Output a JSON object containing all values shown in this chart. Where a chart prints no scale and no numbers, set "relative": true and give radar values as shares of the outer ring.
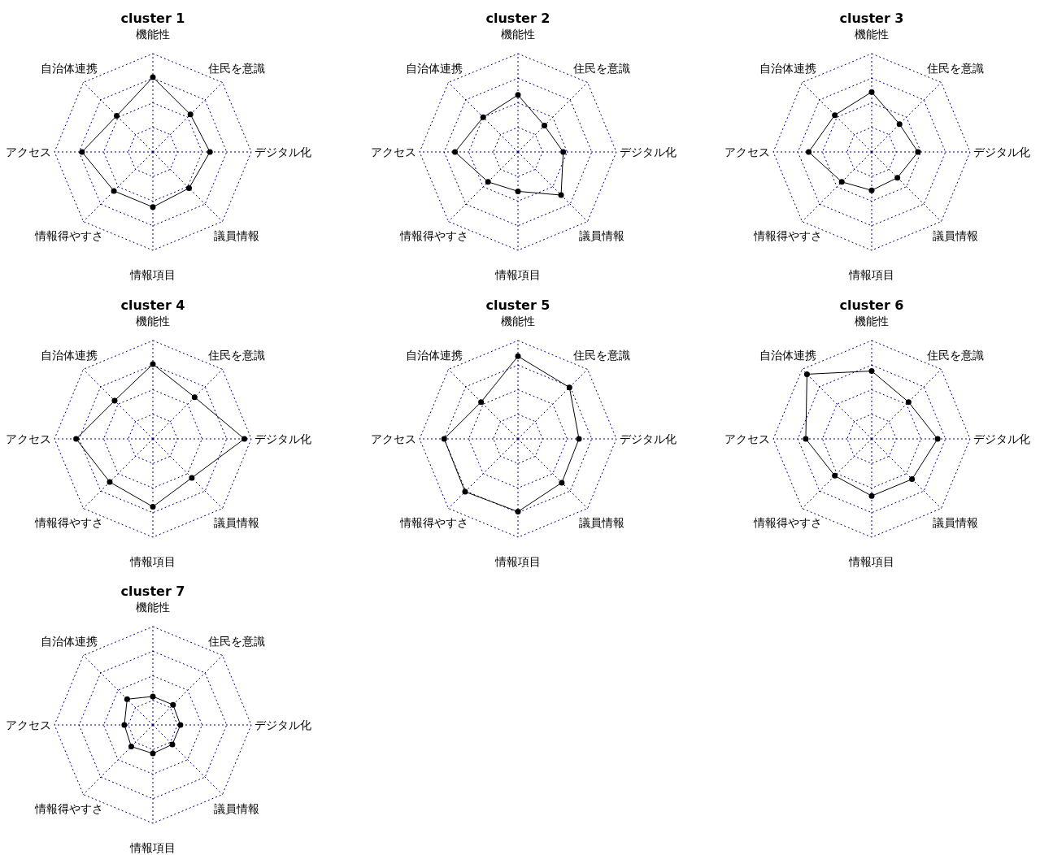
{
  "chart_data": [
    {
      "type": "radar",
      "title": "cluster 1",
      "categories": [
        "機能性",
        "住民を意識",
        "デジタル化",
        "議員情報",
        "情報項目",
        "情報得やすさ",
        "アクセス",
        "自治体連携"
      ],
      "relative": true,
      "grid": true,
      "marker": "circle",
      "series": [
        {
          "color": "#000000",
          "values": [
            0.76,
            0.54,
            0.58,
            0.52,
            0.56,
            0.56,
            0.72,
            0.52
          ]
        }
      ]
    },
    {
      "type": "radar",
      "title": "cluster 2",
      "categories": [
        "機能性",
        "住民を意識",
        "デジタル化",
        "議員情報",
        "情報項目",
        "情報得やすさ",
        "アクセス",
        "自治体連携"
      ],
      "relative": true,
      "grid": true,
      "marker": "circle",
      "series": [
        {
          "color": "#000000",
          "values": [
            0.58,
            0.38,
            0.46,
            0.62,
            0.4,
            0.43,
            0.64,
            0.5
          ]
        }
      ]
    },
    {
      "type": "radar",
      "title": "cluster 3",
      "categories": [
        "機能性",
        "住民を意識",
        "デジタル化",
        "議員情報",
        "情報項目",
        "情報得やすさ",
        "アクセス",
        "自治体連携"
      ],
      "relative": true,
      "grid": true,
      "marker": "circle",
      "series": [
        {
          "color": "#000000",
          "values": [
            0.61,
            0.4,
            0.47,
            0.37,
            0.39,
            0.43,
            0.64,
            0.53
          ]
        }
      ]
    },
    {
      "type": "radar",
      "title": "cluster 4",
      "categories": [
        "機能性",
        "住民を意識",
        "デジタル化",
        "議員情報",
        "情報項目",
        "情報得やすさ",
        "アクセス",
        "自治体連携"
      ],
      "relative": true,
      "grid": true,
      "marker": "circle",
      "series": [
        {
          "color": "#000000",
          "values": [
            0.76,
            0.6,
            0.93,
            0.56,
            0.69,
            0.62,
            0.78,
            0.55
          ]
        }
      ]
    },
    {
      "type": "radar",
      "title": "cluster 5",
      "categories": [
        "機能性",
        "住民を意識",
        "デジタル化",
        "議員情報",
        "情報項目",
        "情報得やすさ",
        "アクセス",
        "自治体連携"
      ],
      "relative": true,
      "grid": true,
      "marker": "circle",
      "series": [
        {
          "color": "#000000",
          "values": [
            0.84,
            0.74,
            0.62,
            0.63,
            0.74,
            0.76,
            0.75,
            0.53
          ]
        }
      ]
    },
    {
      "type": "radar",
      "title": "cluster 6",
      "categories": [
        "機能性",
        "住民を意識",
        "デジタル化",
        "議員情報",
        "情報項目",
        "情報得やすさ",
        "アクセス",
        "自治体連携"
      ],
      "relative": true,
      "grid": true,
      "marker": "circle",
      "series": [
        {
          "color": "#000000",
          "values": [
            0.69,
            0.53,
            0.67,
            0.58,
            0.58,
            0.53,
            0.67,
            0.93
          ]
        }
      ]
    },
    {
      "type": "radar",
      "title": "cluster 7",
      "categories": [
        "機能性",
        "住民を意識",
        "デジタル化",
        "議員情報",
        "情報項目",
        "情報得やすさ",
        "アクセス",
        "自治体連携"
      ],
      "relative": true,
      "grid": true,
      "marker": "circle",
      "series": [
        {
          "color": "#000000",
          "values": [
            0.29,
            0.29,
            0.28,
            0.28,
            0.29,
            0.31,
            0.29,
            0.37
          ]
        }
      ]
    }
  ]
}
